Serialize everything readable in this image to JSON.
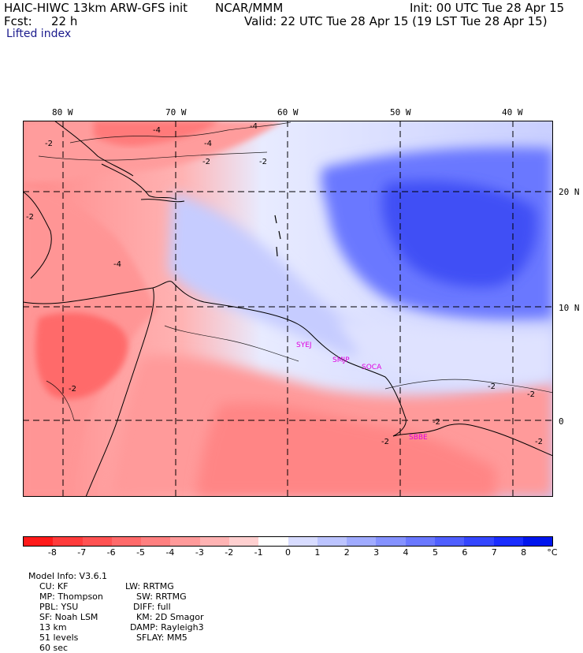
{
  "header": {
    "model": "HAIC-HIWC 13km ARW-GFS init",
    "org": "NCAR/MMM",
    "init": "Init: 00 UTC Tue 28 Apr 15",
    "fcst_label": "Fcst:",
    "fcst_value": "22 h",
    "valid": "Valid: 22 UTC Tue 28 Apr 15 (19 LST Tue 28 Apr 15)",
    "field": "Lifted index"
  },
  "map": {
    "lon_labels": [
      "80 W",
      "70 W",
      "60 W",
      "50 W",
      "40 W"
    ],
    "lat_labels": [
      "20 N",
      "10 N",
      "0"
    ],
    "contour_labels": [
      "-4",
      "-4",
      "-4",
      "-2",
      "-2",
      "-2",
      "-2",
      "-2",
      "-2",
      "-2",
      "-2",
      "-2",
      "-2",
      "-4"
    ],
    "stations": [
      "SYEJ",
      "SMJP",
      "SOCA",
      "SBBE"
    ]
  },
  "colorbar": {
    "unit": "°C",
    "ticks": [
      "-8",
      "-7",
      "-6",
      "-5",
      "-4",
      "-3",
      "-2",
      "-1",
      "0",
      "1",
      "2",
      "3",
      "4",
      "5",
      "6",
      "7",
      "8"
    ],
    "colors": [
      "#ff1a1a",
      "#ff3b3b",
      "#ff5252",
      "#ff6a6a",
      "#ff8080",
      "#ff9a9a",
      "#ffb3b3",
      "#ffd0d0",
      "#ffffff",
      "#d8dcff",
      "#bcc4ff",
      "#a0abff",
      "#8592ff",
      "#6a78ff",
      "#4f5fff",
      "#3446ff",
      "#1a2dff",
      "#0015ee"
    ]
  },
  "footer": {
    "line1": [
      "Model Info: V3.6.1",
      "CU: KF",
      "MP: Thompson",
      "PBL: YSU",
      "SF: Noah LSM",
      "13 km",
      "51 levels",
      "60 sec"
    ],
    "line2": [
      "LW: RRTMG",
      "SW: RRTMG",
      "DIFF: full",
      "KM: 2D Smagor",
      "DAMP: Rayleigh3",
      "SFLAY: MM5"
    ]
  }
}
